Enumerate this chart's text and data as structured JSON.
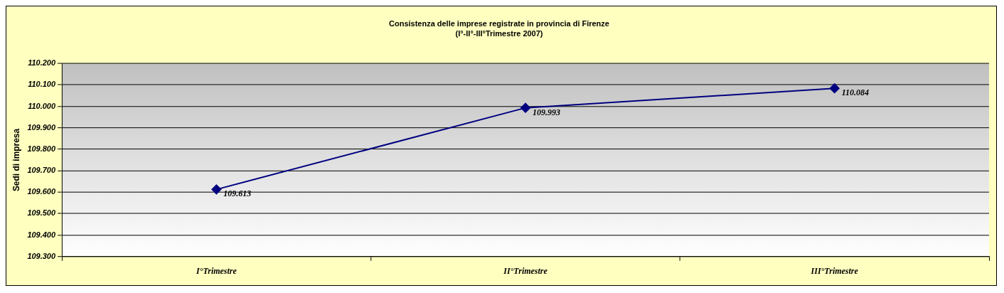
{
  "chart_data": {
    "type": "line",
    "title": "Consistenza delle imprese registrate in provincia di Firenze\n(I°-II°-III°Trimestre 2007)",
    "ylabel": "Sedi di impresa",
    "categories": [
      "I°Trimestre",
      "II°Trimestre",
      "III°Trimestre"
    ],
    "series": [
      {
        "color": "#000080",
        "values": [
          109613,
          109993,
          110084
        ],
        "value_labels": [
          "109.613",
          "109.993",
          "110.084"
        ]
      }
    ],
    "ylim": [
      109300,
      110200
    ],
    "yticks": [
      {
        "value": 109300,
        "label": "109.300"
      },
      {
        "value": 109400,
        "label": "109.400"
      },
      {
        "value": 109500,
        "label": "109.500"
      },
      {
        "value": 109600,
        "label": "109.600"
      },
      {
        "value": 109700,
        "label": "109.700"
      },
      {
        "value": 109800,
        "label": "109.800"
      },
      {
        "value": 109900,
        "label": "109.900"
      },
      {
        "value": 110000,
        "label": "110.000"
      },
      {
        "value": 110100,
        "label": "110.100"
      },
      {
        "value": 110200,
        "label": "110.200"
      }
    ],
    "grid": "y",
    "marker": "diamond",
    "line_style": "solid"
  }
}
